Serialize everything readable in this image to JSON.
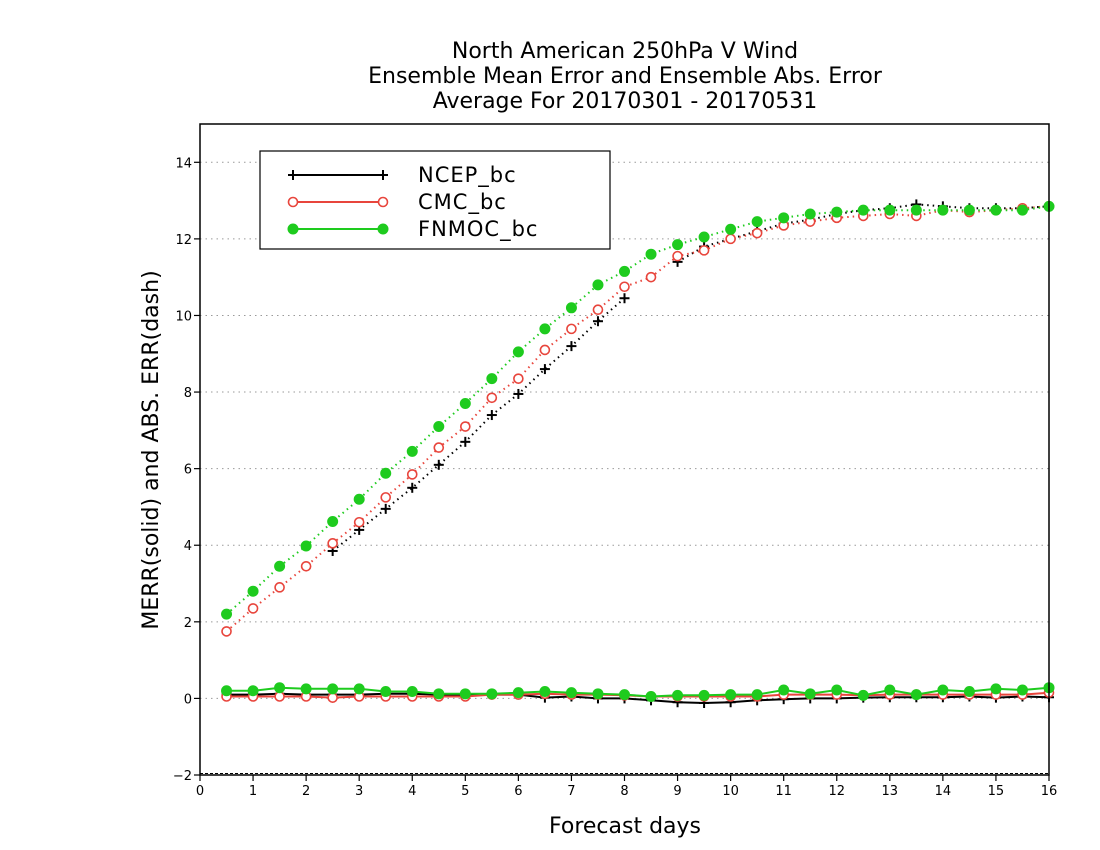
{
  "chart_data": {
    "type": "line",
    "title": [
      "North American 250hPa V Wind",
      "Ensemble Mean Error and Ensemble Abs. Error",
      "Average For 20170301 - 20170531"
    ],
    "xlabel": "Forecast days",
    "ylabel": "MERR(solid) and ABS. ERR(dash)",
    "xlim": [
      0,
      16
    ],
    "ylim": [
      -2,
      15
    ],
    "xticks": [
      0,
      1,
      2,
      3,
      4,
      5,
      6,
      7,
      8,
      9,
      10,
      11,
      12,
      13,
      14,
      15,
      16
    ],
    "yticks": [
      -2,
      0,
      2,
      4,
      6,
      8,
      10,
      12,
      14
    ],
    "grid": true,
    "legend_position": "top-left",
    "x": [
      0.5,
      1,
      1.5,
      2,
      2.5,
      3,
      3.5,
      4,
      4.5,
      5,
      5.5,
      6,
      6.5,
      7,
      7.5,
      8,
      8.5,
      9,
      9.5,
      10,
      10.5,
      11,
      11.5,
      12,
      12.5,
      13,
      13.5,
      14,
      14.5,
      15,
      15.5,
      16
    ],
    "series": [
      {
        "name": "NCEP_bc",
        "color": "#000000",
        "marker": "plus",
        "abs_err": [
          null,
          null,
          null,
          null,
          3.85,
          4.4,
          4.95,
          5.5,
          6.1,
          6.7,
          7.4,
          7.95,
          8.6,
          9.2,
          9.85,
          10.45,
          null,
          11.4,
          11.8,
          12.0,
          12.2,
          12.4,
          12.5,
          12.65,
          12.75,
          12.8,
          12.9,
          12.85,
          12.8,
          12.8,
          12.8,
          12.85
        ],
        "mean_err": [
          0.1,
          0.1,
          0.12,
          0.1,
          0.1,
          0.1,
          0.12,
          0.12,
          0.1,
          0.1,
          0.1,
          0.1,
          0.02,
          0.05,
          0.0,
          0.0,
          -0.05,
          -0.1,
          -0.12,
          -0.1,
          -0.05,
          -0.02,
          0.0,
          0.0,
          0.02,
          0.03,
          0.03,
          0.03,
          0.05,
          0.02,
          0.05,
          0.03
        ]
      },
      {
        "name": "CMC_bc",
        "color": "#e8453c",
        "marker": "open-circle",
        "abs_err": [
          1.75,
          2.35,
          2.9,
          3.45,
          4.05,
          4.6,
          5.25,
          5.85,
          6.55,
          7.1,
          7.85,
          8.35,
          9.1,
          9.65,
          10.15,
          10.75,
          11.0,
          11.55,
          11.7,
          12.0,
          12.15,
          12.35,
          12.45,
          12.55,
          12.6,
          12.65,
          12.6,
          12.75,
          12.7,
          12.75,
          12.8,
          12.85
        ],
        "mean_err": [
          0.05,
          0.05,
          0.05,
          0.05,
          0.02,
          0.05,
          0.05,
          0.05,
          0.05,
          0.05,
          0.1,
          0.1,
          0.12,
          0.1,
          0.1,
          0.08,
          0.05,
          0.05,
          0.05,
          0.05,
          0.05,
          0.1,
          0.1,
          0.1,
          0.08,
          0.1,
          0.1,
          0.1,
          0.1,
          0.1,
          0.1,
          0.15
        ]
      },
      {
        "name": "FNMOC_bc",
        "color": "#1ecb1e",
        "marker": "filled-circle",
        "abs_err": [
          2.2,
          2.8,
          3.45,
          3.98,
          4.62,
          5.2,
          5.88,
          6.45,
          7.1,
          7.7,
          8.35,
          9.05,
          9.65,
          10.2,
          10.8,
          11.15,
          11.6,
          11.85,
          12.05,
          12.25,
          12.45,
          12.55,
          12.65,
          12.7,
          12.75,
          12.75,
          12.75,
          12.75,
          12.75,
          12.75,
          12.75,
          12.85
        ],
        "mean_err": [
          0.2,
          0.2,
          0.28,
          0.25,
          0.25,
          0.25,
          0.18,
          0.18,
          0.12,
          0.12,
          0.12,
          0.15,
          0.18,
          0.15,
          0.12,
          0.1,
          0.05,
          0.08,
          0.08,
          0.1,
          0.1,
          0.22,
          0.12,
          0.22,
          0.08,
          0.22,
          0.1,
          0.22,
          0.18,
          0.25,
          0.22,
          0.28
        ]
      }
    ]
  }
}
